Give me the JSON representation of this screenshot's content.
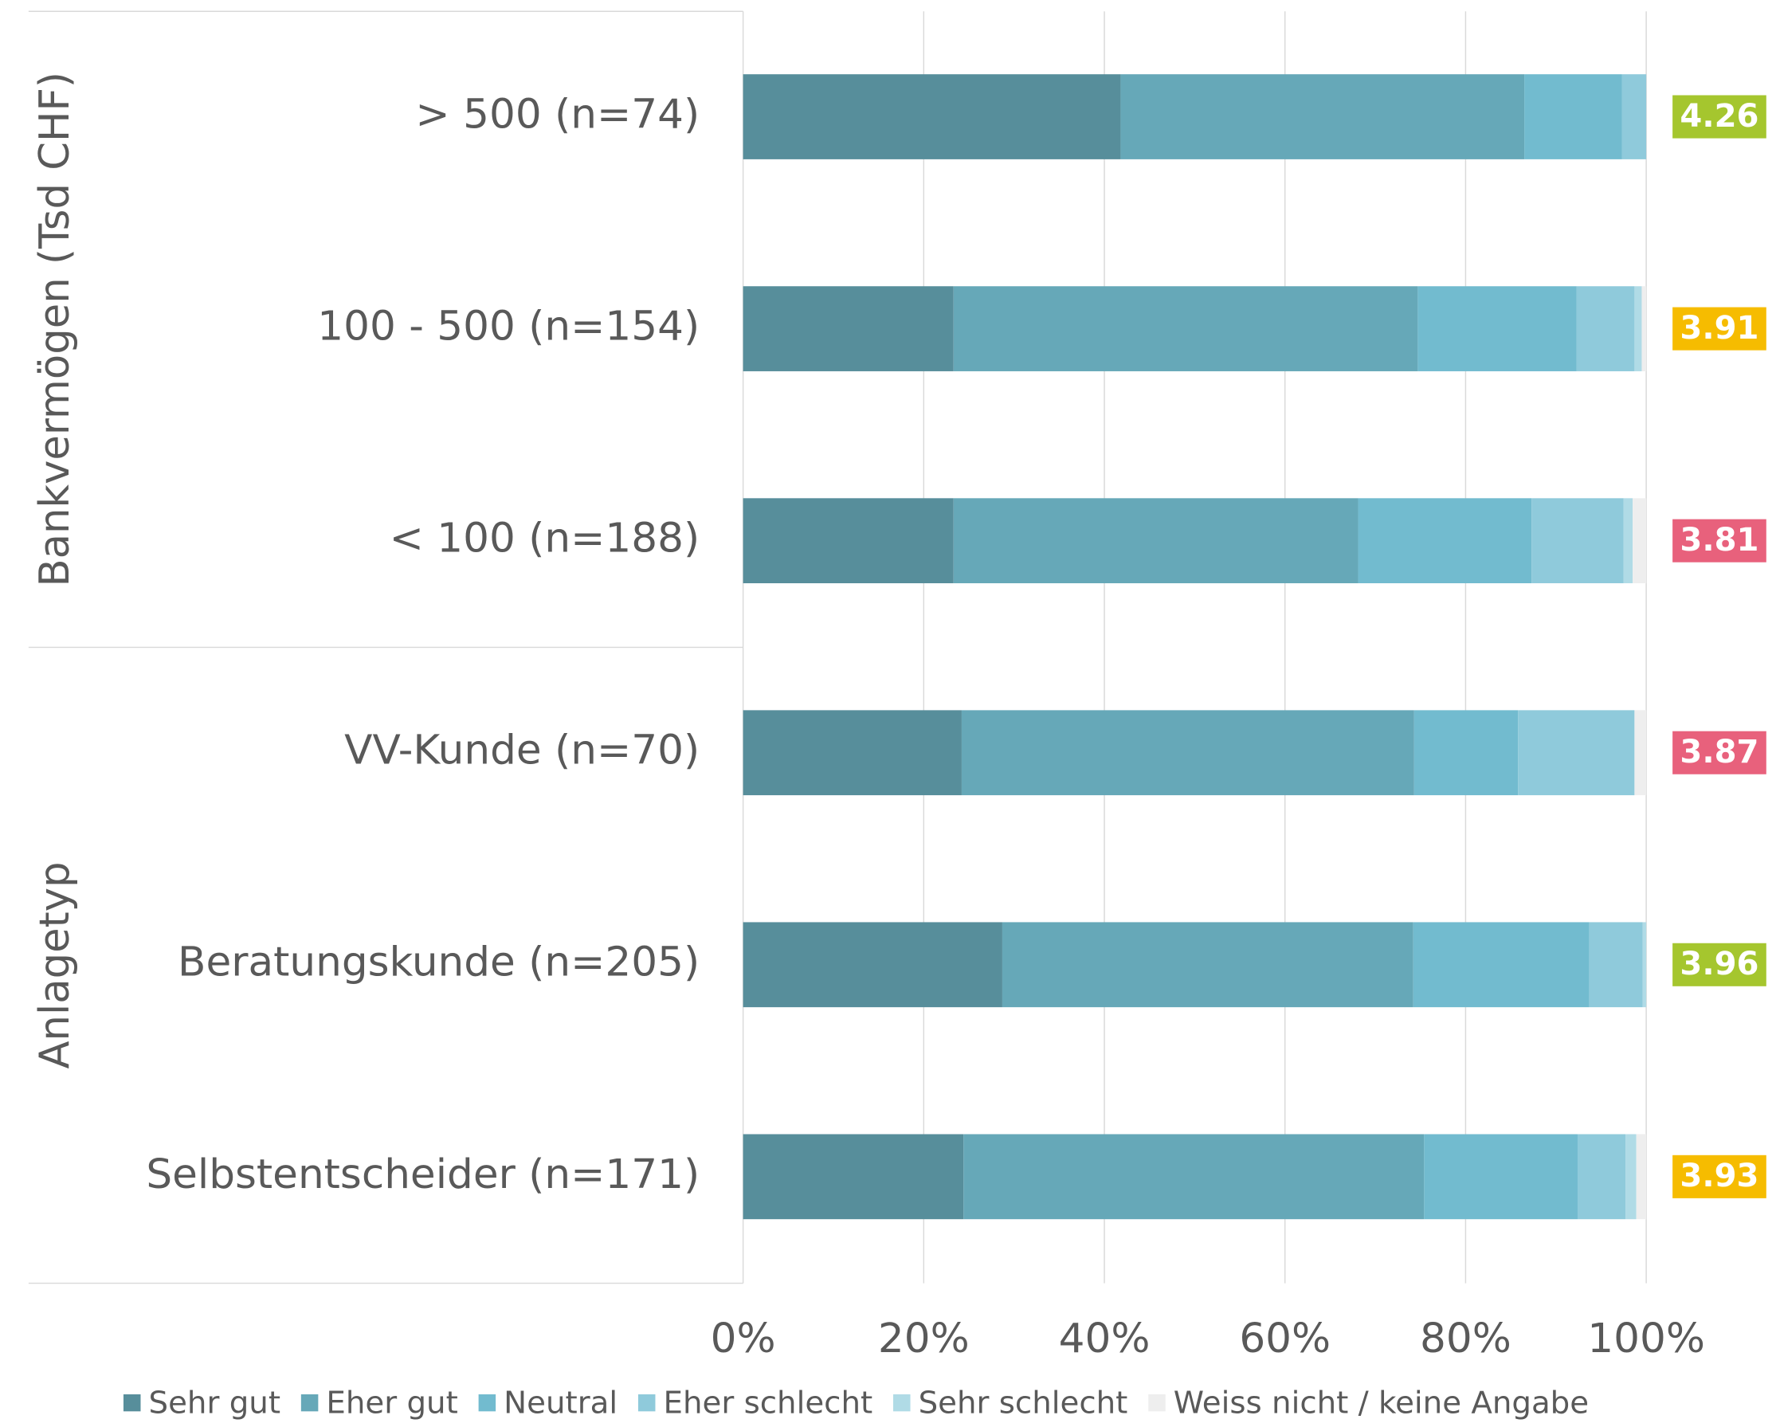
{
  "chart_data": {
    "type": "stacked_barh",
    "categories": [
      "> 500 (n=74)",
      "100 - 500 (n=154)",
      "< 100 (n=188)",
      "VV-Kunde (n=70)",
      "Beratungskunde (n=205)",
      "Selbstentscheider (n=171)"
    ],
    "group_labels": [
      "Bankvermögen (Tsd CHF)",
      "Anlagetyp"
    ],
    "series": [
      {
        "name": "Sehr gut",
        "color": "#578e9b",
        "values": [
          41.8,
          23.3,
          23.3,
          24.2,
          28.7,
          24.4
        ]
      },
      {
        "name": "Eher gut",
        "color": "#66a8b8",
        "values": [
          44.7,
          51.4,
          44.8,
          50.1,
          45.5,
          51.0
        ]
      },
      {
        "name": "Neutral",
        "color": "#72bbcf",
        "values": [
          10.8,
          17.6,
          19.2,
          11.5,
          19.5,
          17.0
        ]
      },
      {
        "name": "Eher schlecht",
        "color": "#8fcadb",
        "values": [
          2.7,
          6.4,
          10.2,
          12.9,
          5.9,
          5.3
        ]
      },
      {
        "name": "Sehr schlecht",
        "color": "#b0dbe6",
        "values": [
          0,
          0.8,
          1.0,
          0,
          0.4,
          1.2
        ]
      },
      {
        "name": "Weiss nicht / keine Angabe",
        "color": "#eeeeee",
        "values": [
          0,
          0.5,
          1.5,
          1.3,
          0,
          1.1
        ]
      }
    ],
    "scores": {
      "values": [
        4.26,
        3.91,
        3.81,
        3.87,
        3.96,
        3.93
      ],
      "colors": [
        "#a5c62e",
        "#f6bc00",
        "#e8617c",
        "#e8617c",
        "#a5c62e",
        "#f6bc00"
      ]
    },
    "xlim": [
      0,
      100
    ],
    "xticks": [
      {
        "value": 0,
        "label": "0%"
      },
      {
        "value": 20,
        "label": "20%"
      },
      {
        "value": 40,
        "label": "40%"
      },
      {
        "value": 60,
        "label": "60%"
      },
      {
        "value": 80,
        "label": "80%"
      },
      {
        "value": 100,
        "label": "100%"
      }
    ],
    "grid": true,
    "legend": "bottom"
  }
}
